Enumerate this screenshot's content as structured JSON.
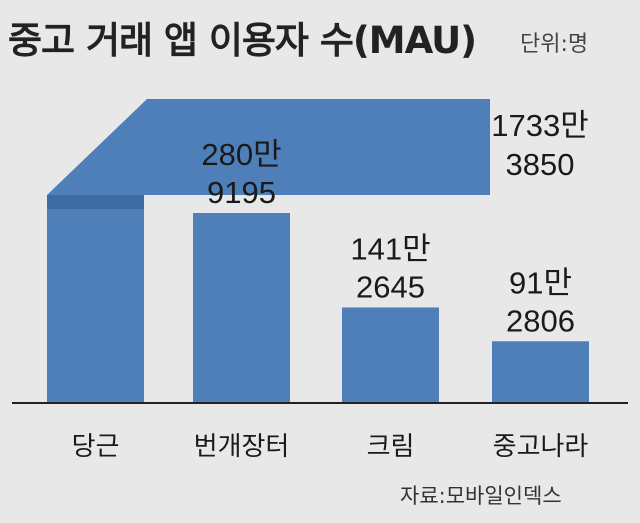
{
  "title": "중고 거래 앱 이용자 수(MAU)",
  "unit": "단위:명",
  "source": "자료:모바일인덱스",
  "colors": {
    "bar": "#4f7fb8",
    "bar_dark": "#3d6aa2",
    "background": "#e8e8e8",
    "axis": "#222222"
  },
  "chart_data": {
    "type": "bar",
    "title": "중고 거래 앱 이용자 수(MAU)",
    "unit": "명",
    "categories": [
      "당근",
      "번개장터",
      "크림",
      "중고나라"
    ],
    "values": [
      17333850,
      2809195,
      1412645,
      912806
    ],
    "value_labels": [
      [
        "1733만",
        "3850"
      ],
      [
        "280만",
        "9195"
      ],
      [
        "141만",
        "2645"
      ],
      [
        "91만",
        "2806"
      ]
    ],
    "note": "당근 bar is drawn truncated (broken bar) with its label at the upper right"
  }
}
